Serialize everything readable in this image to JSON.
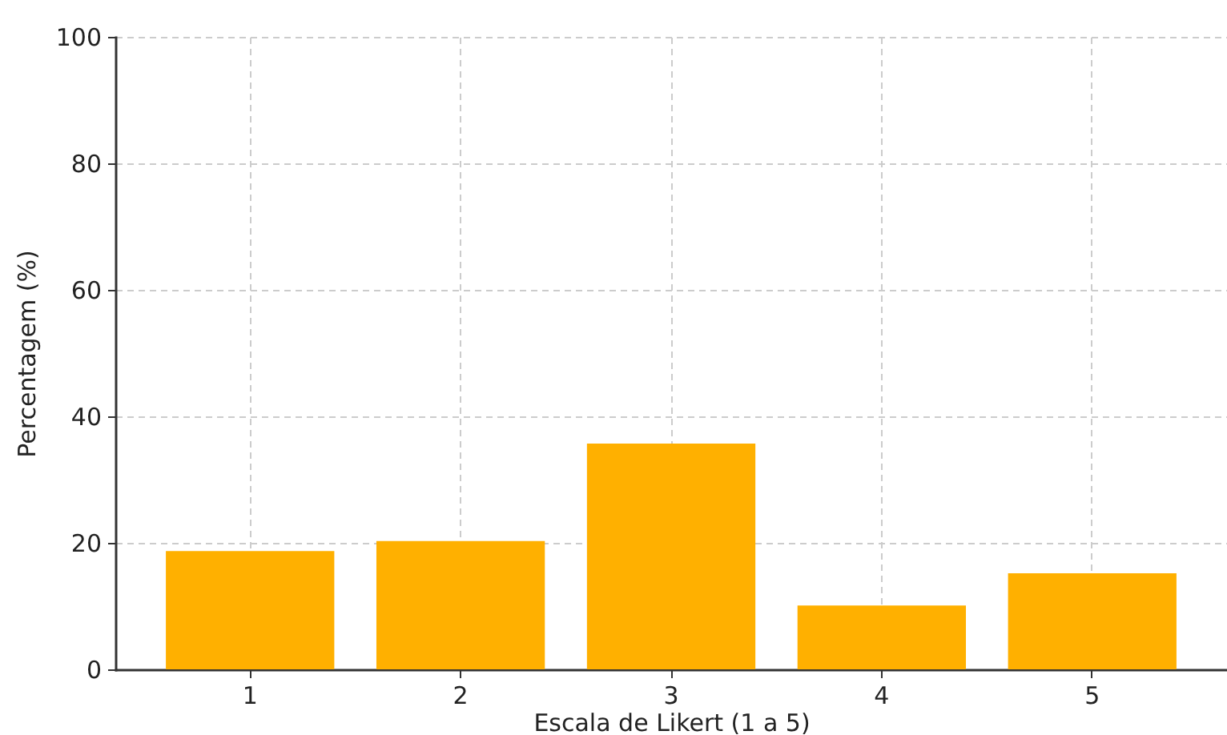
{
  "chart_data": {
    "type": "bar",
    "categories": [
      "1",
      "2",
      "3",
      "4",
      "5"
    ],
    "values": [
      18.7,
      20.3,
      35.7,
      10.1,
      15.2
    ],
    "color": "#ffb000",
    "xlabel": "Escala de Likert (1 a 5)",
    "ylabel": "Percentagem (%)",
    "ylim": [
      0,
      100
    ],
    "yticks": [
      0,
      20,
      40,
      60,
      80,
      100
    ],
    "grid": true
  }
}
